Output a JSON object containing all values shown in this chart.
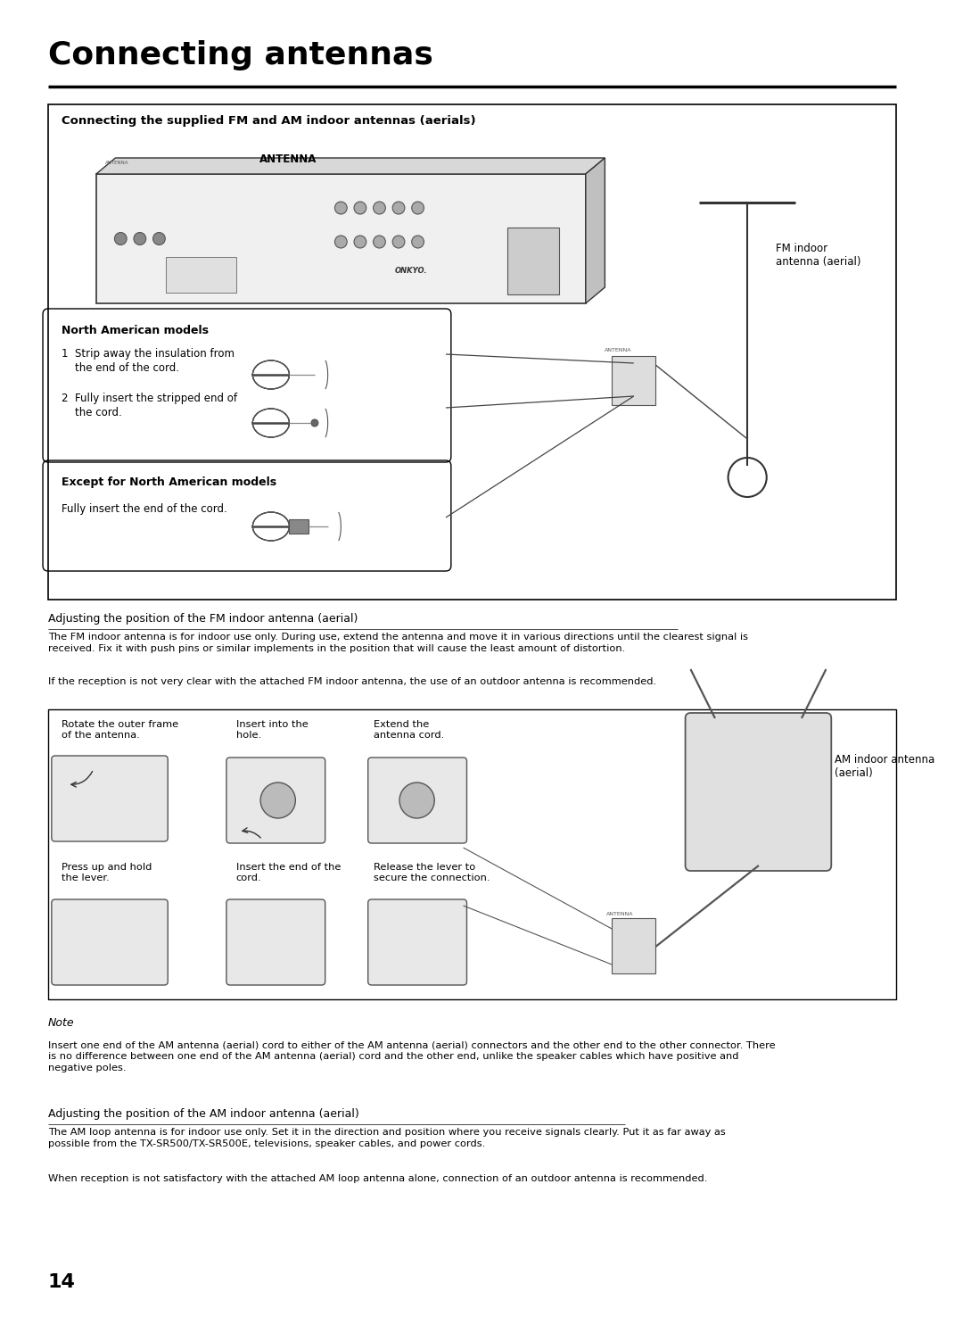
{
  "title": "Connecting antennas",
  "box_title": "Connecting the supplied FM and AM indoor antennas (aerials)",
  "antenna_label": "ANTENNA",
  "north_american_header": "North American models",
  "except_header": "Except for North American models",
  "except_text": "Fully insert the end of the cord.",
  "fm_label": "FM indoor\nantenna (aerial)",
  "adj_fm_header": "Adjusting the position of the FM indoor antenna (aerial)",
  "adj_fm_text1": "The FM indoor antenna is for indoor use only. During use, extend the antenna and move it in various directions until the clearest signal is\nreceived. Fix it with push pins or similar implements in the position that will cause the least amount of distortion.",
  "adj_fm_text2": "If the reception is not very clear with the attached FM indoor antenna, the use of an outdoor antenna is recommended.",
  "am_box_row1_labels": [
    "Rotate the outer frame\nof the antenna.",
    "Insert into the\nhole.",
    "Extend the\nantenna cord."
  ],
  "am_indoor_label": "AM indoor antenna\n(aerial)",
  "am_box_row2_labels": [
    "Press up and hold\nthe lever.",
    "Insert the end of the\ncord.",
    "Release the lever to\nsecure the connection."
  ],
  "note_header": "Note",
  "note_text": "Insert one end of the AM antenna (aerial) cord to either of the AM antenna (aerial) connectors and the other end to the other connector. There\nis no difference between one end of the AM antenna (aerial) cord and the other end, unlike the speaker cables which have positive and\nnegative poles.",
  "adj_am_header": "Adjusting the position of the AM indoor antenna (aerial)",
  "adj_am_text1": "The AM loop antenna is for indoor use only. Set it in the direction and position where you receive signals clearly. Put it as far away as\npossible from the TX-SR500/TX-SR500E, televisions, speaker cables, and power cords.",
  "adj_am_text2": "When reception is not satisfactory with the attached AM loop antenna alone, connection of an outdoor antenna is recommended.",
  "page_number": "14",
  "bg_color": "#ffffff",
  "text_color": "#000000"
}
